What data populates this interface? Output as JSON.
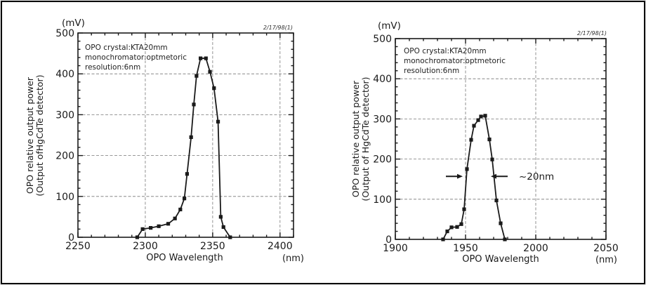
{
  "figure": {
    "background": "#ffffff",
    "border_color": "#000000",
    "ink_color": "#1a1a1a",
    "grid_color": "#777777"
  },
  "chart_data": [
    {
      "type": "line",
      "y_unit": "(mV)",
      "date_note": "2/17/98(1)",
      "annotation_lines": [
        "OPO crystal:KTA20mm",
        "monochromator:optmetoric",
        "resolution:6nm"
      ],
      "ylabel_line1": "OPO relative output power",
      "ylabel_line2": "(Output ofHgCdTe detector)",
      "xlabel": "OPO Wavelength",
      "x_unit": "(nm)",
      "xlim": [
        2250,
        2410
      ],
      "ylim": [
        0,
        500
      ],
      "xticks": [
        2250,
        2300,
        2350,
        2400
      ],
      "yticks": [
        0,
        100,
        200,
        300,
        400,
        500
      ],
      "x_minor_step": 10,
      "y_minor_step": 20,
      "grid": true,
      "legend": "none",
      "marker": "square",
      "x": [
        2294,
        2298,
        2304,
        2310,
        2317,
        2322,
        2326,
        2329,
        2331,
        2334,
        2336,
        2338,
        2341,
        2345,
        2348,
        2351,
        2354,
        2356,
        2358,
        2363
      ],
      "y": [
        0,
        20,
        23,
        27,
        33,
        46,
        68,
        95,
        155,
        245,
        325,
        395,
        438,
        438,
        405,
        365,
        283,
        50,
        25,
        0
      ]
    },
    {
      "type": "line",
      "y_unit": "(mV)",
      "date_note": "2/17/98(1)",
      "annotation_lines": [
        "OPO crystal:KTA20mm",
        "monochromator:optmetoric",
        "resolution:6nm"
      ],
      "ylabel_line1": "OPO relative output power",
      "ylabel_line2": "(Output of HgCdTe detector)",
      "xlabel": "OPO Wavelength",
      "x_unit": "(nm)",
      "xlim": [
        1900,
        2050
      ],
      "ylim": [
        0,
        500
      ],
      "xticks": [
        1900,
        1950,
        2000,
        2050
      ],
      "yticks": [
        0,
        100,
        200,
        300,
        400,
        500
      ],
      "x_minor_step": 10,
      "y_minor_step": 20,
      "grid": true,
      "legend": "none",
      "marker": "square",
      "x": [
        1934,
        1937,
        1940,
        1944,
        1947,
        1949,
        1951,
        1954,
        1956,
        1959,
        1961,
        1964,
        1967,
        1969,
        1972,
        1975,
        1978
      ],
      "y": [
        0,
        20,
        30,
        31,
        38,
        75,
        175,
        248,
        283,
        297,
        306,
        308,
        249,
        199,
        97,
        40,
        0
      ],
      "width_annotation": {
        "label": "~20nm",
        "y_value": 157,
        "left_arrow": {
          "tail": 1936,
          "tip": 1948
        },
        "right_arrow": {
          "tail": 1980,
          "tip": 1968
        },
        "label_x": 1988
      }
    }
  ]
}
